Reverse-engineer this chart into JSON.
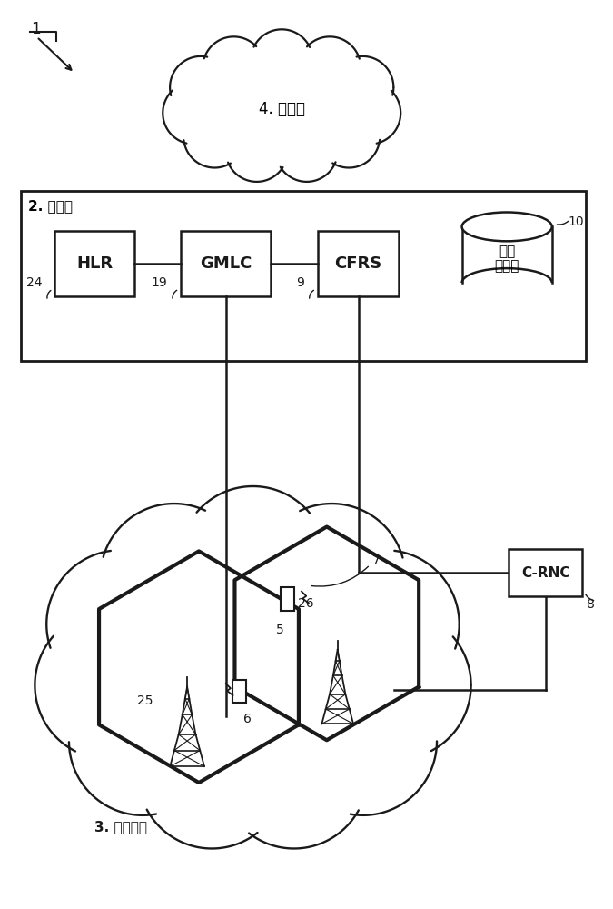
{
  "bg_color": "#ffffff",
  "line_color": "#1a1a1a",
  "label_1": "1",
  "label_internet": "4. 因特网",
  "label_corenet": "2. 核心网",
  "label_mobilenet": "3. 移动网络",
  "label_HLR": "HLR",
  "label_GMLC": "GMLC",
  "label_CFRS": "CFRS",
  "label_db_1": "中心",
  "label_db_2": "储存库",
  "label_CRNC": "C-RNC",
  "num_24": "24",
  "num_19": "19",
  "num_9": "9",
  "num_10": "10",
  "num_8": "8",
  "num_7": "7",
  "num_25": "25",
  "num_26": "26",
  "num_5": "5",
  "num_6": "6"
}
